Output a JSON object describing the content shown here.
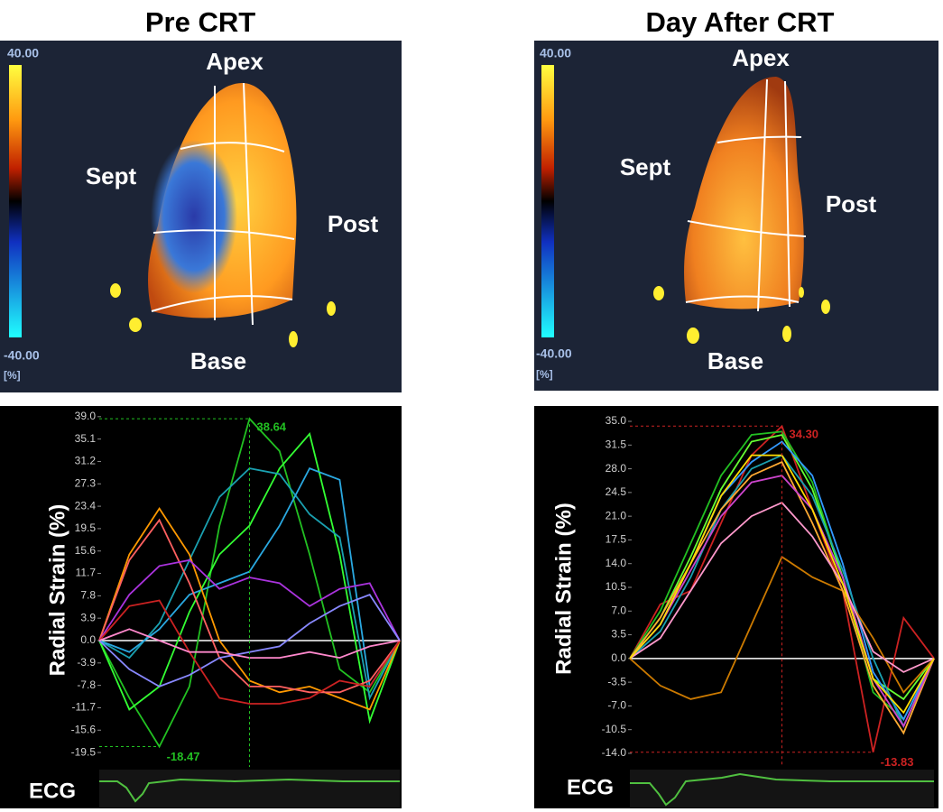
{
  "panels": [
    {
      "title": "Pre CRT",
      "colorbar": {
        "max": "40.00",
        "min": "-40.00",
        "unit": "[%]"
      },
      "regions": {
        "apex": "Apex",
        "sept": "Sept",
        "post": "Post",
        "base": "Base"
      },
      "ecg": "ECG"
    },
    {
      "title": "Day After CRT",
      "colorbar": {
        "max": "40.00",
        "min": "-40.00",
        "unit": "[%]"
      },
      "regions": {
        "apex": "Apex",
        "sept": "Sept",
        "post": "Post",
        "base": "Base"
      },
      "ecg": "ECG"
    }
  ],
  "chart_data": [
    {
      "type": "line",
      "y_label": "Radial Strain (%)",
      "categories": [
        null,
        null,
        null,
        null,
        null,
        null,
        null,
        null,
        null,
        null,
        null
      ],
      "ylim": [
        -22,
        39.6
      ],
      "yticks": [
        {
          "value": 39,
          "label": "39.0"
        },
        35.1,
        31.2,
        27.3,
        23.4,
        19.5,
        15.6,
        11.7,
        7.8,
        3.9,
        {
          "value": 0,
          "label": "0.0"
        },
        -3.9,
        -7.8,
        -11.7,
        -15.6,
        -19.5
      ],
      "zero_line_color": "#ffffff",
      "series": [
        {
          "color": "#22c022",
          "values": [
            0,
            -10,
            -18.47,
            -8,
            20,
            38.64,
            33,
            15,
            -5,
            -9,
            0
          ]
        },
        {
          "color": "#33ff33",
          "values": [
            0,
            -12,
            -8,
            5,
            15,
            20,
            30,
            36,
            15,
            -14,
            0
          ]
        },
        {
          "color": "#1aa0b0",
          "values": [
            0,
            -3,
            3,
            14,
            25,
            30,
            29,
            22,
            18,
            -10,
            0
          ]
        },
        {
          "color": "#2aa8e0",
          "values": [
            0,
            -2,
            2,
            8,
            10,
            12,
            20,
            30,
            28,
            -8,
            0
          ]
        },
        {
          "color": "#ff9900",
          "values": [
            0,
            15,
            23,
            15,
            0,
            -7,
            -9,
            -8,
            -10,
            -12,
            0
          ]
        },
        {
          "color": "#ff6060",
          "values": [
            0,
            14,
            21,
            10,
            -3,
            -8,
            -8,
            -9,
            -9,
            -7,
            0
          ]
        },
        {
          "color": "#aa33dd",
          "values": [
            0,
            8,
            13,
            14,
            9,
            11,
            10,
            6,
            9,
            10,
            0
          ]
        },
        {
          "color": "#8888ff",
          "values": [
            0,
            -5,
            -8,
            -6,
            -3,
            -2,
            -1,
            3,
            6,
            8,
            0
          ]
        },
        {
          "color": "#cc2222",
          "values": [
            0,
            6,
            7,
            -2,
            -10,
            -11,
            -11,
            -10,
            -7,
            -8,
            0
          ]
        },
        {
          "color": "#ff88cc",
          "values": [
            0,
            2,
            0,
            -2,
            -2,
            -3,
            -3,
            -2,
            -3,
            -1,
            0
          ]
        }
      ],
      "annotations": [
        {
          "value": 38.64,
          "label": "38.64",
          "color": "#22c022"
        },
        {
          "value": -18.47,
          "label": "-18.47",
          "color": "#22c022"
        }
      ]
    },
    {
      "type": "line",
      "y_label": "Radial Strain (%)",
      "categories": [
        null,
        null,
        null,
        null,
        null,
        null,
        null,
        null,
        null,
        null,
        null
      ],
      "ylim": [
        -16,
        36.6
      ],
      "yticks": [
        {
          "value": 35,
          "label": "35.0"
        },
        31.5,
        {
          "value": 28,
          "label": "28.0"
        },
        24.5,
        {
          "value": 21,
          "label": "21.0"
        },
        17.5,
        {
          "value": 14,
          "label": "14.0"
        },
        10.5,
        {
          "value": 7,
          "label": "7.0"
        },
        3.5,
        {
          "value": 0,
          "label": "0.0"
        },
        -3.5,
        {
          "value": -7,
          "label": "-7.0"
        },
        -10.5,
        {
          "value": -14,
          "label": "-14.0"
        }
      ],
      "zero_line_color": "#ffffff",
      "series": [
        {
          "color": "#cc2222",
          "values": [
            0,
            8,
            10,
            20,
            30,
            34.3,
            22,
            10,
            -13.83,
            6,
            0
          ]
        },
        {
          "color": "#22c022",
          "values": [
            0,
            7,
            17,
            27,
            33,
            33.5,
            26,
            12,
            -5,
            -9,
            0
          ]
        },
        {
          "color": "#66ff33",
          "values": [
            0,
            6,
            15,
            25,
            32,
            33,
            25,
            12,
            -3,
            -6,
            0
          ]
        },
        {
          "color": "#3399ff",
          "values": [
            0,
            5,
            14,
            24,
            29,
            32,
            27,
            14,
            -2,
            -9,
            0
          ]
        },
        {
          "color": "#1aa0b0",
          "values": [
            0,
            4,
            12,
            22,
            28,
            30,
            24,
            13,
            0,
            -10,
            0
          ]
        },
        {
          "color": "#cc7a00",
          "values": [
            0,
            -4,
            -6,
            -5,
            5,
            15,
            12,
            10,
            3,
            -5,
            0
          ]
        },
        {
          "color": "#ffaa33",
          "values": [
            0,
            6,
            14,
            22,
            27,
            29,
            20,
            10,
            -4,
            -11,
            0
          ]
        },
        {
          "color": "#cc44cc",
          "values": [
            0,
            5,
            13,
            21,
            26,
            27,
            22,
            12,
            -3,
            -10,
            0
          ]
        },
        {
          "color": "#ff99cc",
          "values": [
            0,
            3,
            10,
            17,
            21,
            23,
            18,
            11,
            1,
            -2,
            0
          ]
        },
        {
          "color": "#ffdd00",
          "values": [
            0,
            5,
            14,
            24,
            30,
            30,
            22,
            11,
            -3,
            -8,
            0
          ]
        }
      ],
      "annotations": [
        {
          "value": 34.3,
          "label": "34.30",
          "color": "#cc2222"
        },
        {
          "value": -13.83,
          "label": "-13.83",
          "color": "#cc2222"
        }
      ]
    }
  ]
}
